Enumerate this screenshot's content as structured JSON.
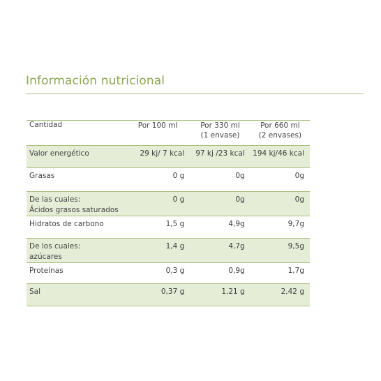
{
  "title": "Información nutricional",
  "table": {
    "headers": [
      "Cantidad",
      "Por 100 ml",
      "Por 330 ml\n(1 envase)",
      "Por 660 ml\n(2 envases)"
    ],
    "rows": [
      {
        "label": "Valor energético",
        "values": [
          "29 kj/ 7 kcal",
          "97 kj /23 kcal",
          "194 kj/46 kcal"
        ],
        "shaded": true
      },
      {
        "label": "Grasas",
        "values": [
          "0 g",
          "0g",
          "0g"
        ],
        "shaded": false
      },
      {
        "label": "De las cuales:\nÁcidos grasos saturados",
        "values": [
          "0 g",
          "0g",
          "0g"
        ],
        "shaded": true
      },
      {
        "label": "Hidratos de carbono",
        "values": [
          "1,5 g",
          "4,9g",
          "9,7g"
        ],
        "shaded": false
      },
      {
        "label": "De los cuales:\nazúcares",
        "values": [
          "1,4 g",
          "4,7g",
          "9,5g"
        ],
        "shaded": true
      },
      {
        "label": "Proteínas",
        "values": [
          "0,3 g",
          "0,9g",
          "1,7g"
        ],
        "shaded": false
      },
      {
        "label": "Sal",
        "values": [
          "0,37 g",
          "1,21 g",
          "2,42 g"
        ],
        "shaded": true
      }
    ]
  },
  "colors": {
    "accent": "#8aa84e",
    "rule": "#a9bf7e",
    "shade": "#e6edd7"
  }
}
